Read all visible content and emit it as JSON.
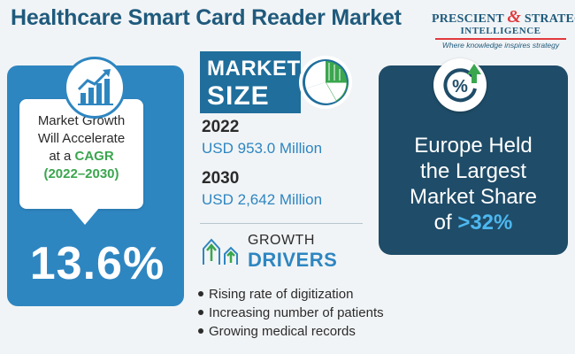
{
  "title": "Healthcare Smart Card Reader Market",
  "logo": {
    "line1_a": "PRESCIENT",
    "amp": "&",
    "line1_b": "STRATEGIC",
    "line2": "INTELLIGENCE",
    "tagline": "Where knowledge inspires strategy"
  },
  "cagr_card": {
    "line1": "Market Growth",
    "line2": "Will Accelerate",
    "line3_prefix": "at a",
    "line3_highlight": "CAGR",
    "years": "(2022–2030)",
    "value": "13.6%",
    "icon": "bar-chart-growth-icon"
  },
  "market_size": {
    "label_word1": "MARKET",
    "label_word2": "SIZE",
    "icon": "pie-chart-icon",
    "entries": [
      {
        "year": "2022",
        "value": "USD 953.0 Million"
      },
      {
        "year": "2030",
        "value": "USD 2,642 Million"
      }
    ]
  },
  "growth_drivers": {
    "label_word1": "GROWTH",
    "label_word2": "DRIVERS",
    "icon": "growth-arrows-icon",
    "items": [
      "Rising rate of digitization",
      "Increasing number of patients",
      "Growing medical records"
    ]
  },
  "europe_card": {
    "line1": "Europe Held",
    "line2": "the Largest",
    "line3": "Market Share",
    "of_word": "of",
    "percent": ">32%",
    "icon": "percent-up-arrow-icon"
  },
  "colors": {
    "title_blue": "#1f5a7c",
    "accent_blue": "#2e86c1",
    "dark_navy": "#1f4c68",
    "green": "#3aa64e",
    "red": "#e03a3e",
    "light_blue": "#4db8f0"
  }
}
